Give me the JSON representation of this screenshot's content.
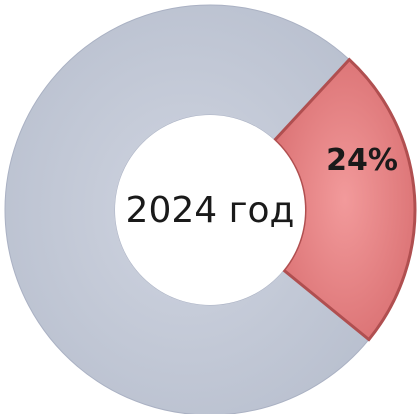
{
  "chart_data": {
    "type": "pie",
    "categories": [
      "",
      "24%"
    ],
    "values": [
      76,
      24
    ],
    "center_label": "2024 год",
    "data_labels": [
      "",
      "24%"
    ],
    "colors": {
      "remainder": "#c2c8d6",
      "highlight": "#e58283",
      "highlight_edge": "#b04f50",
      "remainder_edge": "#aab1c3"
    }
  }
}
